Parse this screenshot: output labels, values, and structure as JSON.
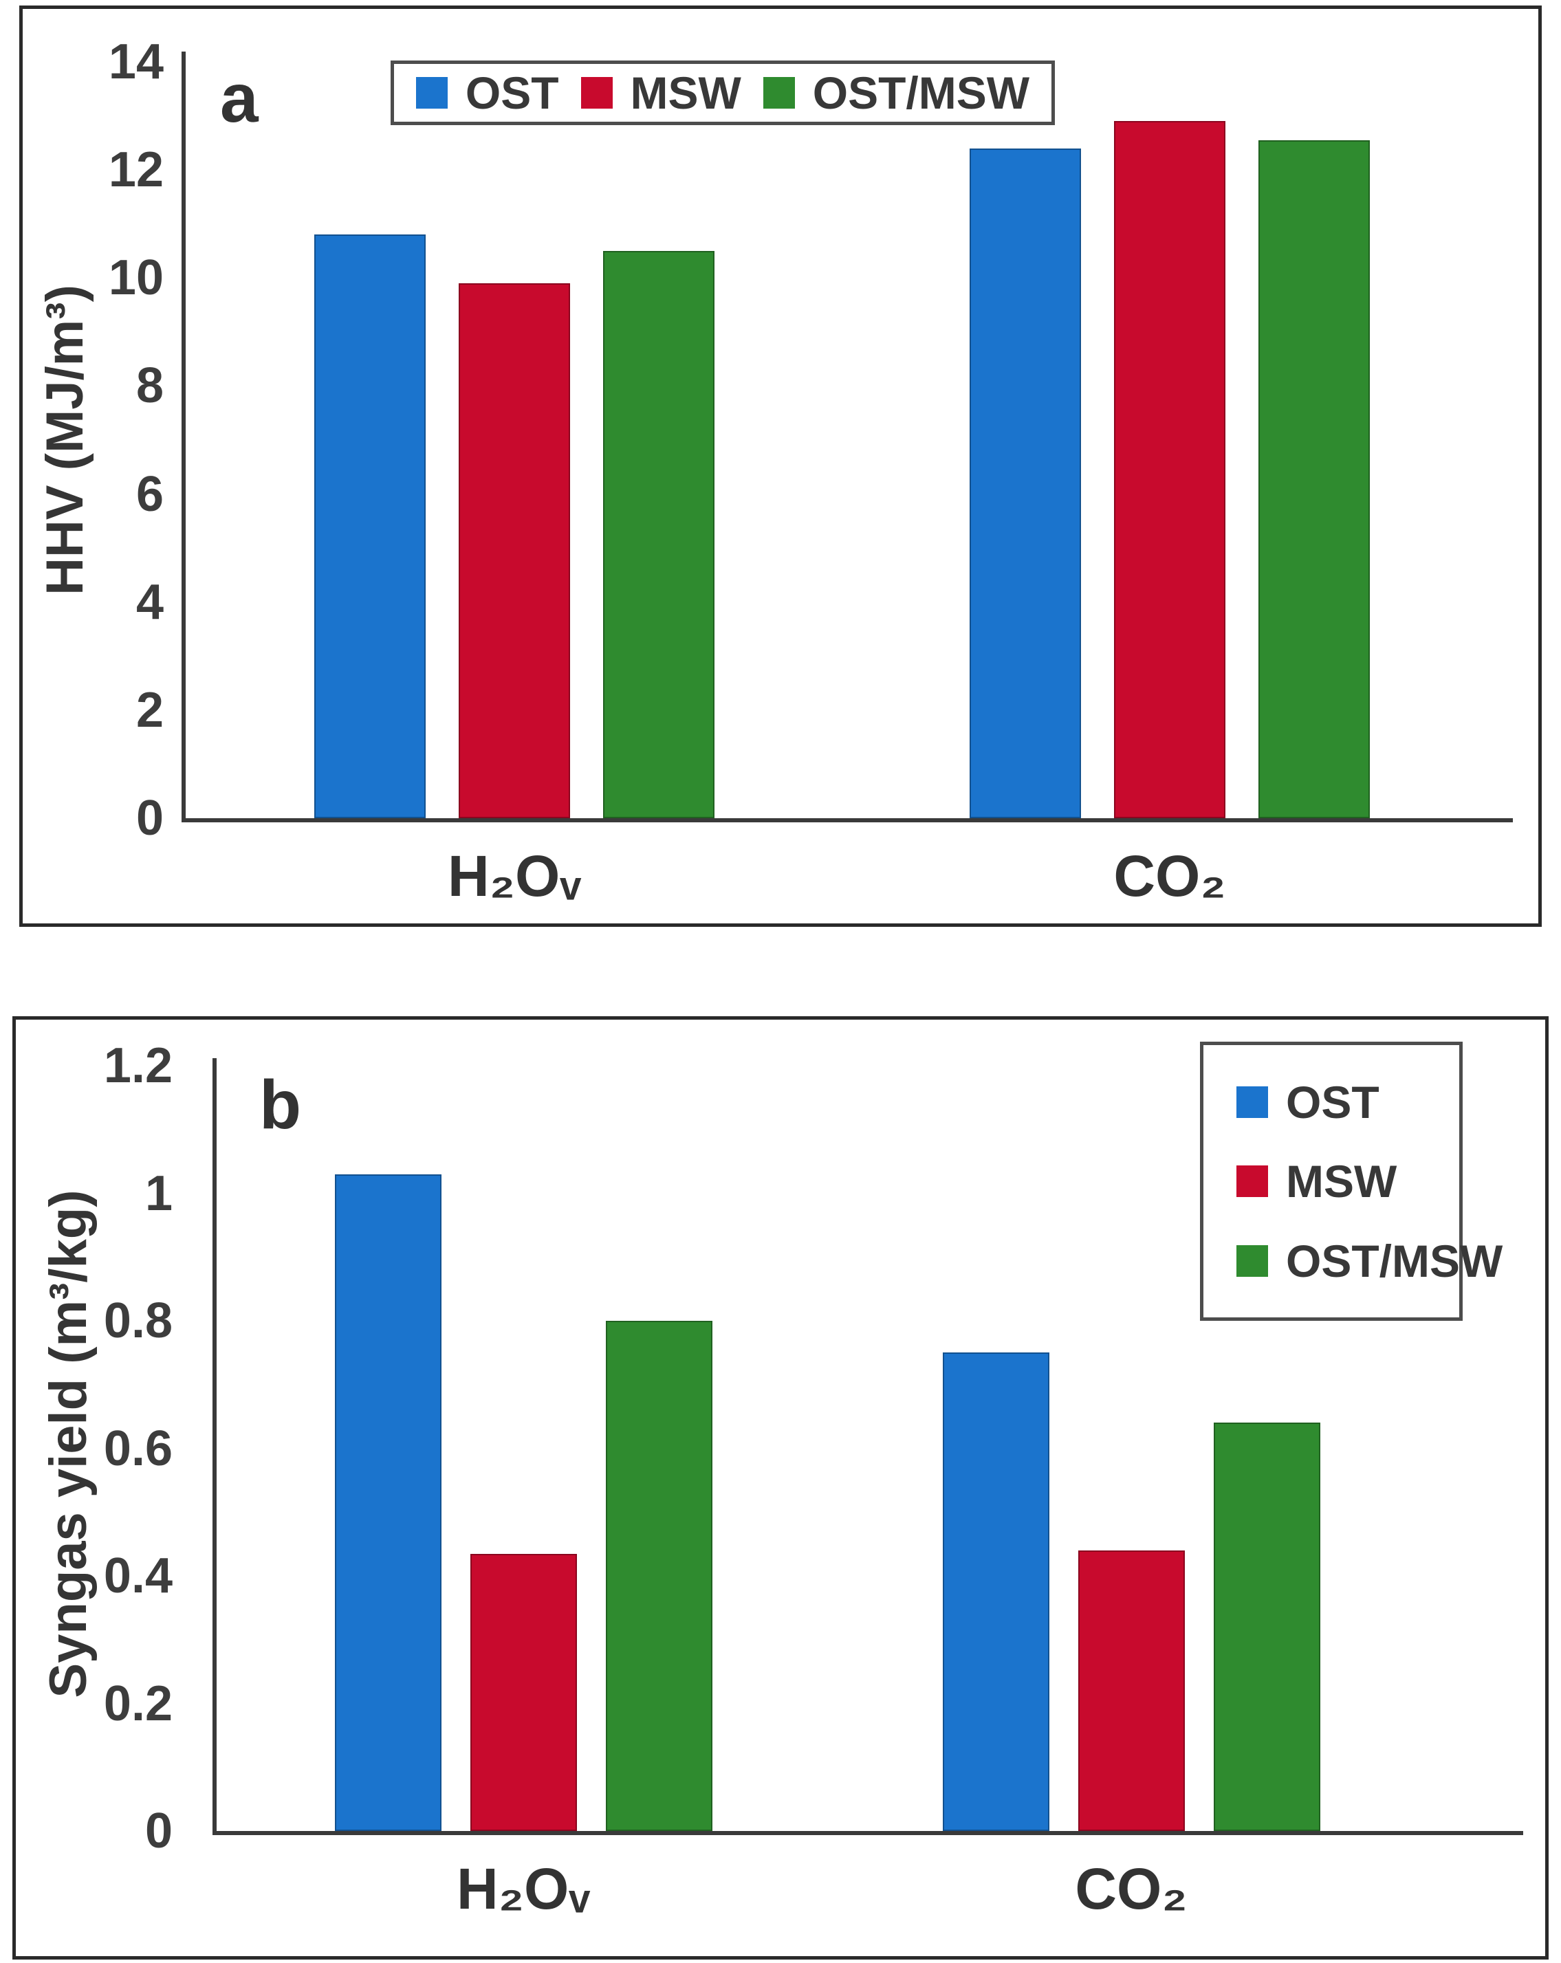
{
  "figure": {
    "panels": [
      {
        "label": "a"
      },
      {
        "label": "b"
      }
    ]
  },
  "chart_data": [
    {
      "type": "bar",
      "panel_label": "a",
      "title": "",
      "xlabel": "",
      "ylabel": "HHV (MJ/m³)",
      "categories": [
        "H₂Oᵥ",
        "CO₂"
      ],
      "series": [
        {
          "name": "OST",
          "color": "#1B74CD",
          "values": [
            10.8,
            12.4
          ]
        },
        {
          "name": "MSW",
          "color": "#C80A2D",
          "values": [
            9.9,
            12.9
          ]
        },
        {
          "name": "OST/MSW",
          "color": "#2F8B2F",
          "values": [
            10.5,
            12.55
          ]
        }
      ],
      "ylim": [
        0,
        14
      ],
      "yticks": [
        0,
        2,
        4,
        6,
        8,
        10,
        12,
        14
      ],
      "ytick_labels": [
        "0",
        "2",
        "4",
        "6",
        "8",
        "10",
        "12",
        "14"
      ],
      "grid": false,
      "legend_position": "top-center-horizontal"
    },
    {
      "type": "bar",
      "panel_label": "b",
      "title": "",
      "xlabel": "",
      "ylabel": "Syngas yield (m³/kg)",
      "categories": [
        "H₂Oᵥ",
        "CO₂"
      ],
      "series": [
        {
          "name": "OST",
          "color": "#1B74CD",
          "values": [
            1.03,
            0.75
          ]
        },
        {
          "name": "MSW",
          "color": "#C80A2D",
          "values": [
            0.435,
            0.44
          ]
        },
        {
          "name": "OST/MSW",
          "color": "#2F8B2F",
          "values": [
            0.8,
            0.64
          ]
        }
      ],
      "ylim": [
        0,
        1.2
      ],
      "yticks": [
        0,
        0.2,
        0.4,
        0.6,
        0.8,
        1,
        1.2
      ],
      "ytick_labels": [
        "0",
        "0.2",
        "0.4",
        "0.6",
        "0.8",
        "1",
        "1.2"
      ],
      "grid": false,
      "legend_position": "top-right-vertical"
    }
  ]
}
